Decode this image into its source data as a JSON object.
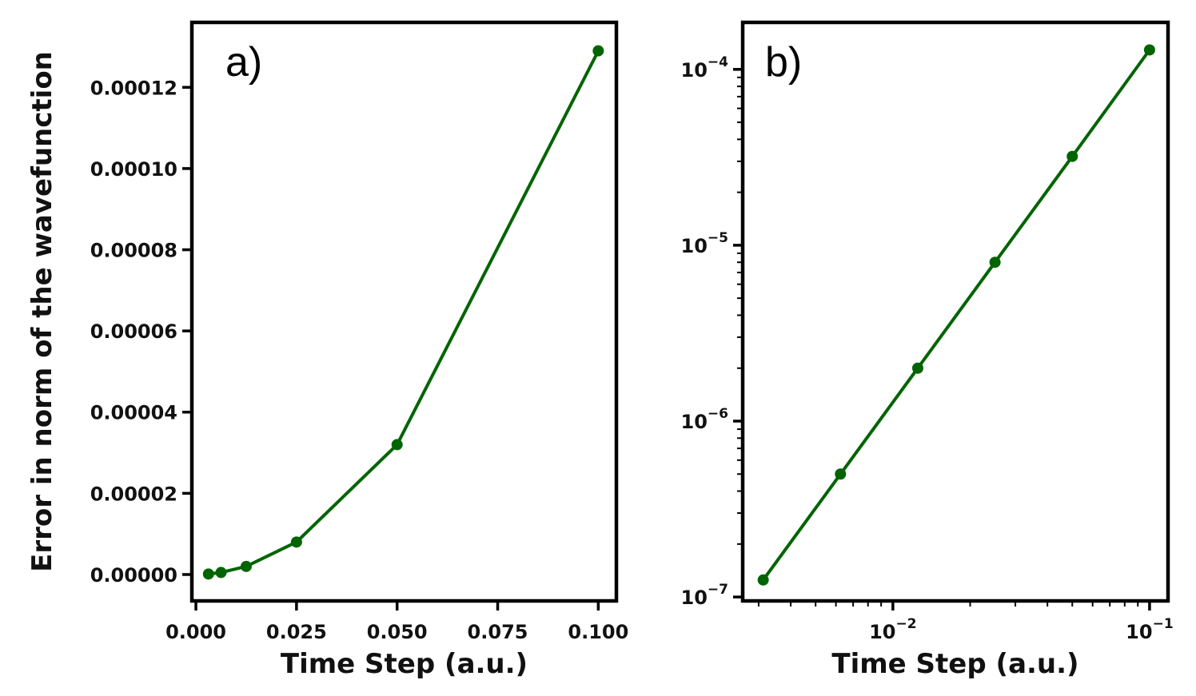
{
  "chart_data": [
    {
      "type": "line",
      "panel_label": "a)",
      "xlabel": "Time Step (a.u.)",
      "ylabel": "Error in norm of the wavefunction",
      "xscale": "linear",
      "yscale": "linear",
      "xlim": [
        -0.001,
        0.1045
      ],
      "ylim": [
        -6.5e-06,
        0.000136
      ],
      "xticks": [
        0.0,
        0.025,
        0.05,
        0.075,
        0.1
      ],
      "xtick_labels": [
        "0.000",
        "0.025",
        "0.050",
        "0.075",
        "0.100"
      ],
      "yticks": [
        0.0,
        2e-05,
        4e-05,
        6e-05,
        8e-05,
        0.0001,
        0.00012
      ],
      "ytick_labels": [
        "0.00000",
        "0.00002",
        "0.00004",
        "0.00006",
        "0.00008",
        "0.00010",
        "0.00012"
      ],
      "grid": false,
      "color": "#006400",
      "series": [
        {
          "x": [
            0.003125,
            0.00625,
            0.0125,
            0.025,
            0.05,
            0.1
          ],
          "y": [
            1.25e-07,
            5e-07,
            2e-06,
            8e-06,
            3.2e-05,
            0.000129
          ]
        }
      ]
    },
    {
      "type": "line",
      "panel_label": "b)",
      "xlabel": "Time Step (a.u.)",
      "ylabel": "",
      "xscale": "log",
      "yscale": "log",
      "xlim": [
        0.0026,
        0.118
      ],
      "ylim": [
        9.5e-08,
        0.000185
      ],
      "xticks": [
        0.01,
        0.1
      ],
      "xtick_labels": [
        {
          "base": "10",
          "exp": "−2"
        },
        {
          "base": "10",
          "exp": "−1"
        }
      ],
      "yticks": [
        1e-07,
        1e-06,
        1e-05,
        0.0001
      ],
      "ytick_labels": [
        {
          "base": "10",
          "exp": "−7"
        },
        {
          "base": "10",
          "exp": "−6"
        },
        {
          "base": "10",
          "exp": "−5"
        },
        {
          "base": "10",
          "exp": "−4"
        }
      ],
      "grid": false,
      "color": "#006400",
      "series": [
        {
          "x": [
            0.003125,
            0.00625,
            0.0125,
            0.025,
            0.05,
            0.1
          ],
          "y": [
            1.25e-07,
            5e-07,
            2e-06,
            8e-06,
            3.2e-05,
            0.000129
          ]
        }
      ]
    }
  ]
}
